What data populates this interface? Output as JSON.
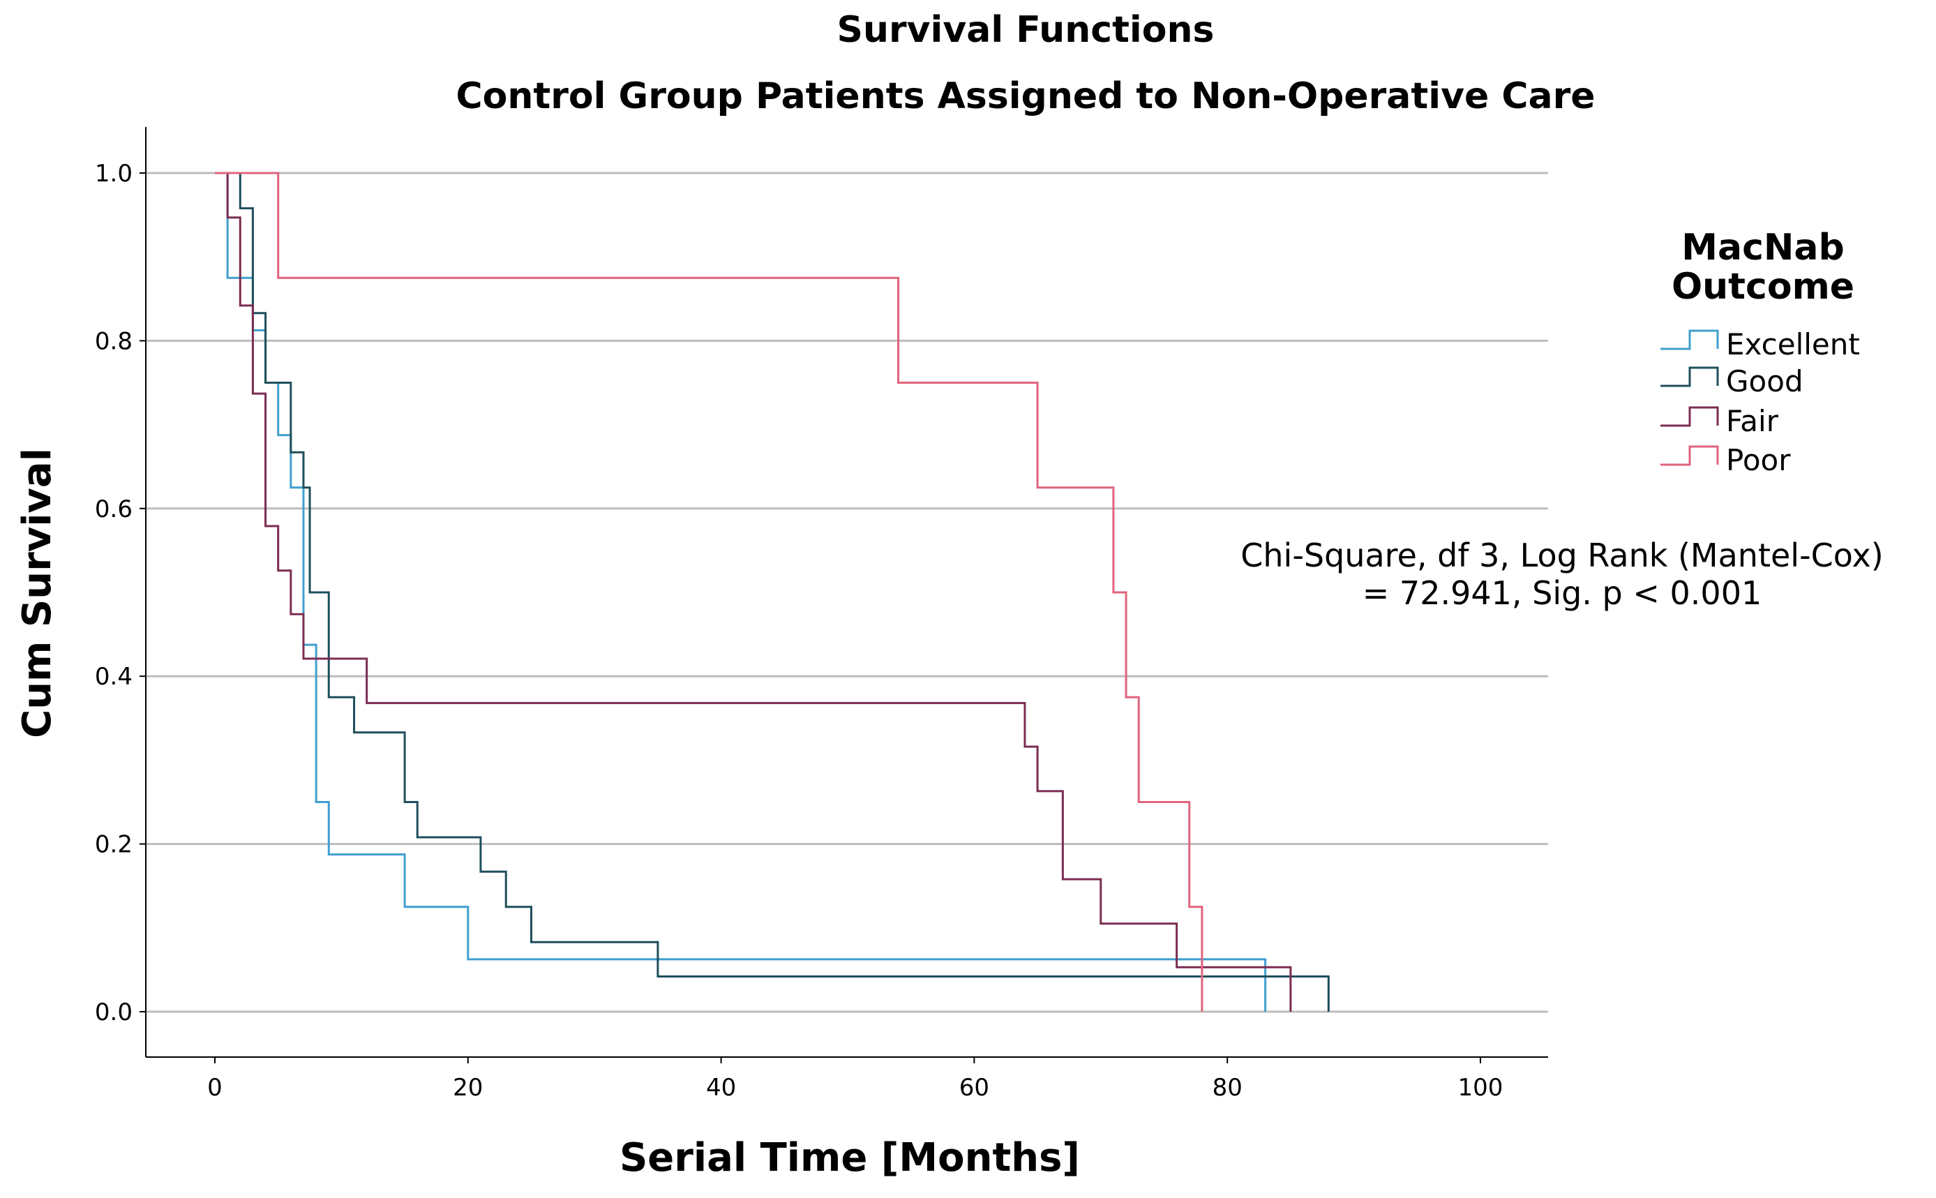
{
  "chart_data": {
    "type": "line",
    "subtype": "kaplan-meier-step",
    "title": "Survival Functions",
    "subtitle": "Control Group Patients Assigned to Non-Operative Care",
    "xlabel": "Serial Time [Months]",
    "ylabel": "Cum Survival",
    "xlim": [
      -5,
      105
    ],
    "ylim": [
      -0.05,
      1.05
    ],
    "xticks": [
      "0",
      "20",
      "40",
      "60",
      "80",
      "100"
    ],
    "yticks": [
      "0.0",
      "0.2",
      "0.4",
      "0.6",
      "0.8",
      "1.0"
    ],
    "grid": "horizontal",
    "legend": {
      "title_line1": "MacNab",
      "title_line2": "Outcome",
      "placement": "right"
    },
    "annotation": {
      "line1": "Chi-Square, df 3, Log Rank (Mantel-Cox)",
      "line2": "= 72.941, Sig. p < 0.001"
    },
    "series": [
      {
        "name": "Excellent",
        "color": "#3f9fcf",
        "steps": [
          [
            0,
            1
          ],
          [
            1,
            0.875
          ],
          [
            3,
            0.8125
          ],
          [
            4,
            0.75
          ],
          [
            5,
            0.6875
          ],
          [
            6,
            0.625
          ],
          [
            7,
            0.4375
          ],
          [
            8,
            0.25
          ],
          [
            9,
            0.1875
          ],
          [
            15,
            0.125
          ],
          [
            20,
            0.0625
          ],
          [
            83,
            0
          ]
        ]
      },
      {
        "name": "Good",
        "color": "#1f4f5c",
        "steps": [
          [
            0,
            1
          ],
          [
            2,
            0.958
          ],
          [
            3,
            0.833
          ],
          [
            4,
            0.75
          ],
          [
            6,
            0.667
          ],
          [
            7,
            0.625
          ],
          [
            7.5,
            0.5
          ],
          [
            9,
            0.375
          ],
          [
            11,
            0.333
          ],
          [
            15,
            0.25
          ],
          [
            16,
            0.208
          ],
          [
            21,
            0.167
          ],
          [
            23,
            0.125
          ],
          [
            25,
            0.083
          ],
          [
            35,
            0.042
          ],
          [
            88,
            0
          ]
        ]
      },
      {
        "name": "Fair",
        "color": "#7b2d50",
        "steps": [
          [
            0,
            1
          ],
          [
            1,
            0.947
          ],
          [
            2,
            0.842
          ],
          [
            3,
            0.737
          ],
          [
            4,
            0.579
          ],
          [
            5,
            0.526
          ],
          [
            6,
            0.474
          ],
          [
            7,
            0.421
          ],
          [
            12,
            0.368
          ],
          [
            64,
            0.316
          ],
          [
            65,
            0.263
          ],
          [
            67,
            0.158
          ],
          [
            70,
            0.105
          ],
          [
            76,
            0.053
          ],
          [
            85,
            0
          ]
        ]
      },
      {
        "name": "Poor",
        "color": "#e0647c",
        "steps": [
          [
            0,
            1
          ],
          [
            5,
            0.875
          ],
          [
            54,
            0.75
          ],
          [
            65,
            0.625
          ],
          [
            71,
            0.5
          ],
          [
            72,
            0.375
          ],
          [
            73,
            0.25
          ],
          [
            77,
            0.125
          ],
          [
            78,
            0
          ]
        ]
      }
    ]
  }
}
